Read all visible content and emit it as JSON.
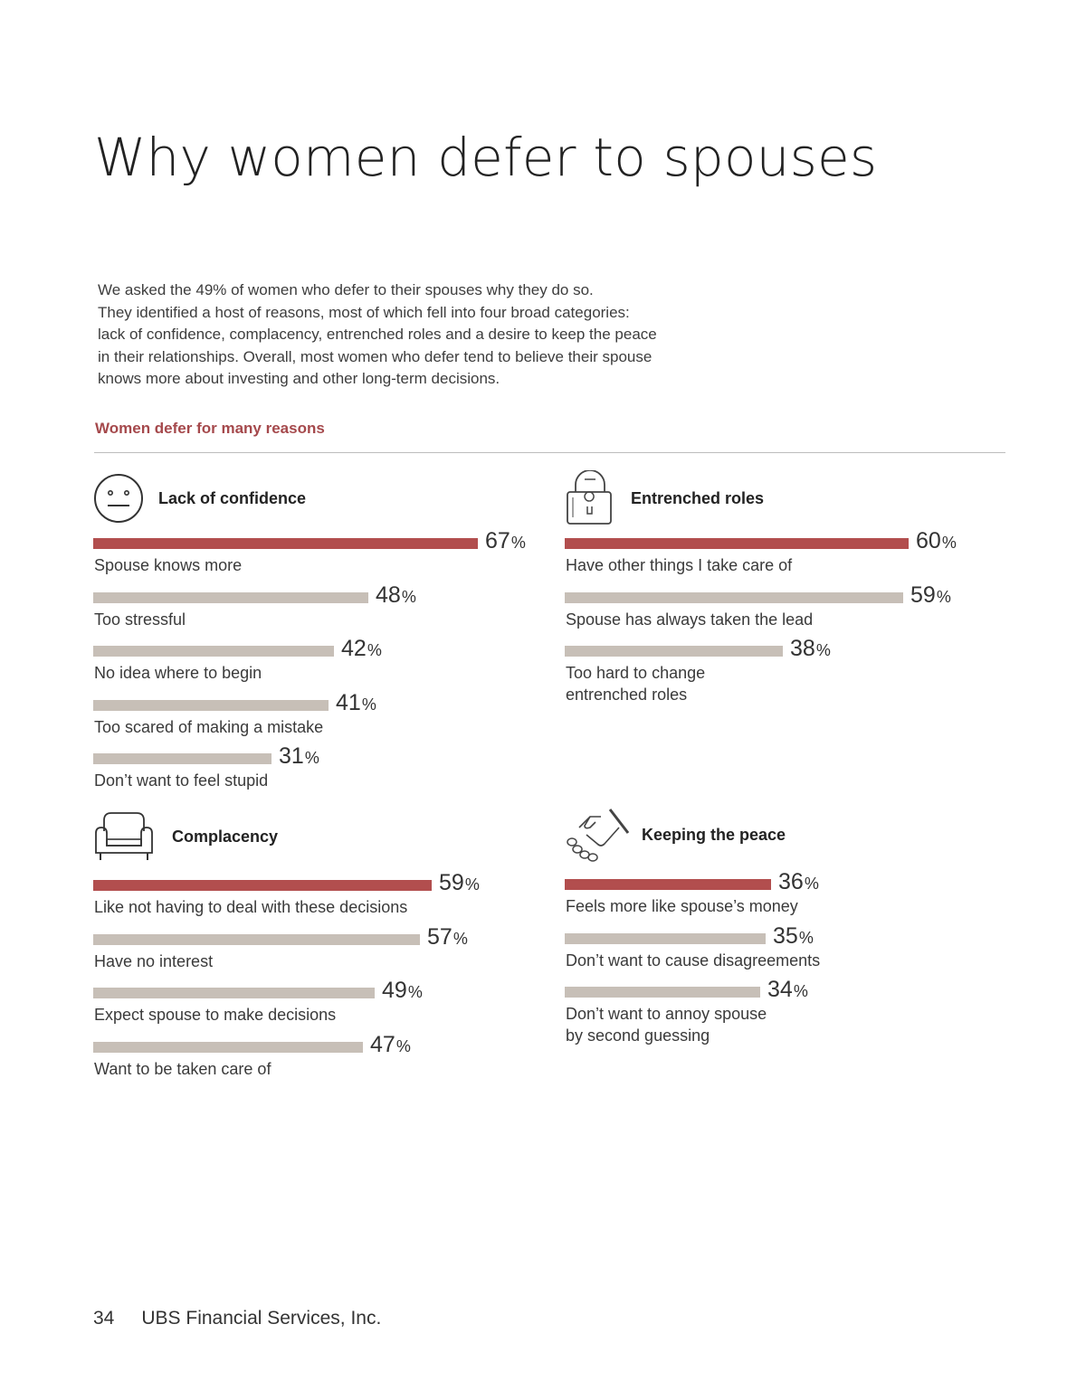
{
  "title": "Why women defer to spouses",
  "intro": [
    "We asked the 49% of women who defer to their spouses why they do so.",
    "They identified a host of reasons, most of which fell into four broad categories:",
    "lack of confidence, complacency, entrenched roles and a desire to keep the peace",
    "in their relationships. Overall, most women who defer tend to believe their spouse",
    "knows more about investing and other long-term decisions."
  ],
  "section_heading": "Women defer for many reasons",
  "colors": {
    "primary": "#b24e4e",
    "secondary": "#c7bfb7",
    "heading": "#a5494c"
  },
  "footer": {
    "page_number": "34",
    "company": "UBS Financial Services, Inc."
  },
  "chart_data": {
    "type": "bar",
    "orientation": "horizontal",
    "unit": "%",
    "groups": [
      {
        "title": "Lack of confidence",
        "icon": "neutral-face-icon",
        "categories": [
          "Spouse knows more",
          "Too stressful",
          "No idea where to begin",
          "Too scared of making a mistake",
          "Don’t want to feel stupid"
        ],
        "values": [
          67,
          48,
          42,
          41,
          31
        ]
      },
      {
        "title": "Entrenched roles",
        "icon": "padlock-icon",
        "categories": [
          "Have other things I take care of",
          "Spouse has always taken the lead",
          "Too hard to change\nentrenched roles"
        ],
        "values": [
          60,
          59,
          38
        ]
      },
      {
        "title": "Complacency",
        "icon": "armchair-icon",
        "categories": [
          "Like not having to deal with these decisions",
          "Have no interest",
          "Expect spouse to make decisions",
          "Want to be taken care of"
        ],
        "values": [
          59,
          57,
          49,
          47
        ]
      },
      {
        "title": "Keeping the peace",
        "icon": "handshake-icon",
        "categories": [
          "Feels more like spouse’s money",
          "Don’t want to cause disagreements",
          "Don’t want to annoy spouse\nby second guessing"
        ],
        "values": [
          36,
          35,
          34
        ]
      }
    ]
  }
}
